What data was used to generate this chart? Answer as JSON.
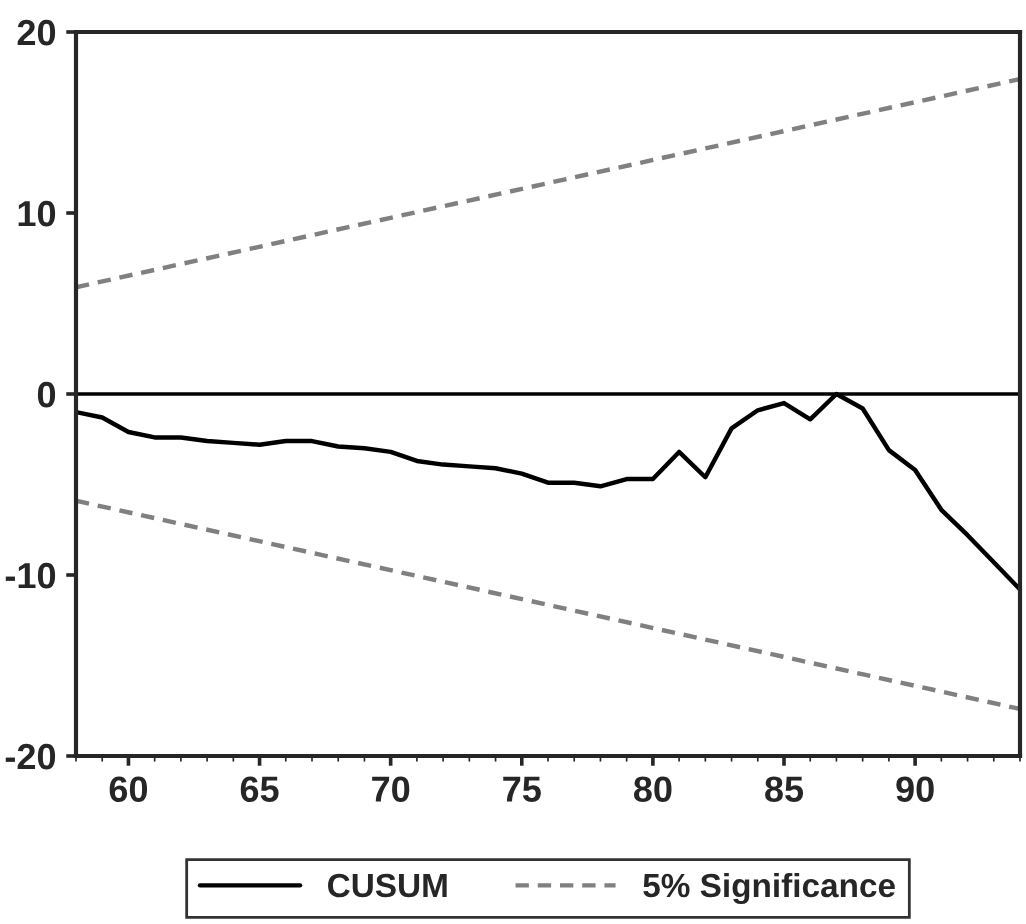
{
  "chart_data": {
    "type": "line",
    "series": [
      {
        "name": "CUSUM",
        "color": "#000000",
        "line_style": "solid",
        "x": [
          58,
          59,
          60,
          61,
          62,
          63,
          64,
          65,
          66,
          67,
          68,
          69,
          70,
          71,
          72,
          73,
          74,
          75,
          76,
          77,
          78,
          79,
          80,
          81,
          82,
          83,
          84,
          85,
          86,
          87,
          88,
          89,
          90,
          91,
          92,
          93,
          94
        ],
        "values": [
          -1.0,
          -1.3,
          -2.1,
          -2.4,
          -2.4,
          -2.6,
          -2.7,
          -2.8,
          -2.6,
          -2.6,
          -2.9,
          -3.0,
          -3.2,
          -3.7,
          -3.9,
          -4.0,
          -4.1,
          -4.4,
          -4.9,
          -4.9,
          -5.1,
          -4.7,
          -4.7,
          -3.2,
          -4.6,
          -1.9,
          -0.9,
          -0.5,
          -1.4,
          0.0,
          -0.8,
          -3.1,
          -4.2,
          -6.4,
          -7.8,
          -9.3,
          -10.8
        ]
      },
      {
        "name": "5% Significance",
        "color": "#808080",
        "line_style": "dashed",
        "x": [
          58,
          94
        ],
        "values": [
          5.9,
          17.4
        ]
      },
      {
        "color": "#808080",
        "line_style": "dashed",
        "x": [
          58,
          94
        ],
        "values": [
          -5.9,
          -17.4
        ]
      }
    ],
    "xlim": [
      58,
      94
    ],
    "xticks": [
      60,
      65,
      70,
      75,
      80,
      85,
      90
    ],
    "ylim": [
      -20,
      20
    ],
    "yticks": [
      -20,
      -10,
      0,
      10,
      20
    ],
    "ref_lines": [
      {
        "axis": "y",
        "value": 0,
        "color": "#000000",
        "line_style": "solid"
      }
    ],
    "grid": false,
    "legend": "bottom",
    "marker": "none"
  }
}
